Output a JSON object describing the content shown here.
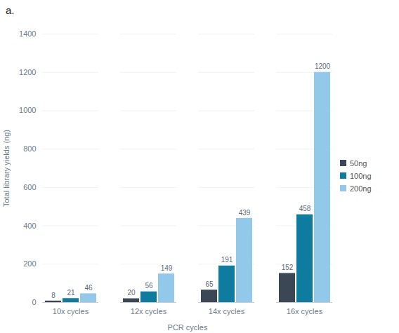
{
  "chart_data": {
    "type": "bar",
    "title": "a.",
    "x_label": "PCR cycles",
    "y_label": "Total library yields (ng)",
    "categories": [
      "10x cycles",
      "12x cycles",
      "14x cycles",
      "16x cycles"
    ],
    "series": [
      {
        "name": "50ng",
        "color": "#3b4754",
        "values": [
          8,
          20,
          65,
          152
        ]
      },
      {
        "name": "100ng",
        "color": "#0e7c9e",
        "values": [
          21,
          56,
          191,
          458
        ]
      },
      {
        "name": "200ng",
        "color": "#92c9ea",
        "values": [
          46,
          149,
          439,
          1200
        ]
      }
    ],
    "ylim": [
      0,
      1400
    ],
    "yticks": [
      0,
      200,
      400,
      600,
      800,
      1000,
      1200,
      1400
    ],
    "grid": true,
    "data_labels": true,
    "legend": "right"
  }
}
